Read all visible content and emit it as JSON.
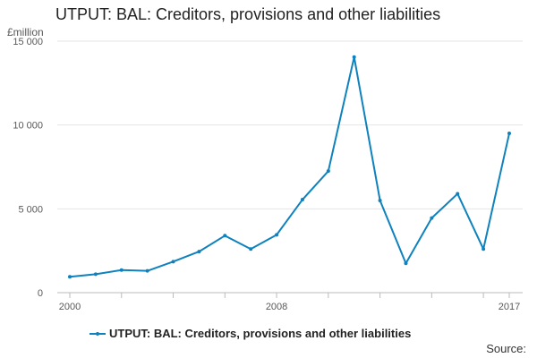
{
  "chart_data": {
    "type": "line",
    "title": "UTPUT: BAL: Creditors, provisions and other liabilities",
    "ylabel": "£million",
    "xlabel": "",
    "x": [
      2000,
      2001,
      2002,
      2003,
      2004,
      2005,
      2006,
      2007,
      2008,
      2009,
      2010,
      2011,
      2012,
      2013,
      2014,
      2015,
      2016,
      2017
    ],
    "x_tick_labels": [
      "2000",
      "2008",
      "2017"
    ],
    "y_tick_labels": [
      "0",
      "5 000",
      "10 000",
      "15 000"
    ],
    "y_ticks": [
      0,
      5000,
      10000,
      15000
    ],
    "xlim": [
      2000,
      2017
    ],
    "ylim": [
      0,
      15000
    ],
    "grid": true,
    "legend_position": "bottom",
    "series": [
      {
        "name": "UTPUT: BAL: Creditors, provisions and other liabilities",
        "color": "#0f82be",
        "values": [
          950,
          1100,
          1350,
          1300,
          1850,
          2450,
          3400,
          2600,
          3450,
          5550,
          7250,
          14050,
          5500,
          1750,
          4450,
          5900,
          2600,
          9500
        ]
      }
    ]
  },
  "source_label": "Source:"
}
